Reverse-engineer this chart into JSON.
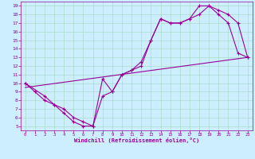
{
  "xlabel": "Windchill (Refroidissement éolien,°C)",
  "bg_color": "#cceeff",
  "grid_color": "#aaddcc",
  "line_color": "#990099",
  "xlim": [
    -0.5,
    23.5
  ],
  "ylim": [
    4.5,
    19.5
  ],
  "xticks": [
    0,
    1,
    2,
    3,
    4,
    5,
    6,
    7,
    8,
    9,
    10,
    11,
    12,
    13,
    14,
    15,
    16,
    17,
    18,
    19,
    20,
    21,
    22,
    23
  ],
  "yticks": [
    5,
    6,
    7,
    8,
    9,
    10,
    11,
    12,
    13,
    14,
    15,
    16,
    17,
    18,
    19
  ],
  "line1_x": [
    0,
    1,
    2,
    3,
    4,
    5,
    6,
    7,
    8,
    9,
    10,
    11,
    12,
    13,
    14,
    15,
    16,
    17,
    18,
    19,
    20,
    21,
    22,
    23
  ],
  "line1_y": [
    10,
    9,
    8,
    7.5,
    6.5,
    5.5,
    5,
    5,
    8.5,
    9,
    11,
    11.5,
    12,
    15,
    17.5,
    17,
    17,
    17.5,
    19,
    19,
    18,
    17,
    13.5,
    13
  ],
  "line2_x": [
    0,
    2,
    3,
    4,
    5,
    6,
    7,
    8,
    9,
    10,
    11,
    12,
    13,
    14,
    15,
    16,
    17,
    18,
    19,
    20,
    21,
    22,
    23
  ],
  "line2_y": [
    10,
    8.5,
    7.5,
    7,
    6,
    5.5,
    5,
    10.5,
    9,
    11,
    11.5,
    12.5,
    15,
    17.5,
    17,
    17,
    17.5,
    18,
    19,
    18.5,
    18,
    17,
    13
  ],
  "line3_x": [
    0,
    23
  ],
  "line3_y": [
    9.5,
    13
  ]
}
